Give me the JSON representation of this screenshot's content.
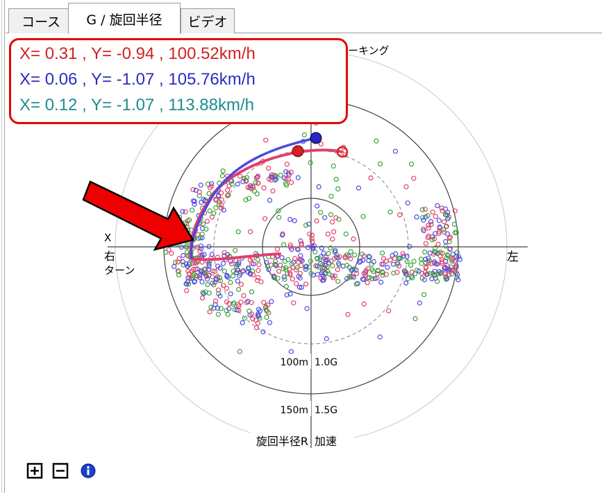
{
  "tabs": [
    {
      "label": "コース",
      "active": false
    },
    {
      "label": "G / 旋回半径",
      "active": true
    },
    {
      "label": "ビデオ",
      "active": false
    }
  ],
  "readouts": [
    {
      "text": "X=  0.31 , Y= -0.94 , 100.52km/h",
      "color": "#d42020"
    },
    {
      "text": "X=  0.06 , Y= -1.07 , 105.76km/h",
      "color": "#2b2bc0"
    },
    {
      "text": "X=  0.12 , Y= -1.07 , 113.88km/h",
      "color": "#1e8c8c"
    }
  ],
  "chart": {
    "top_label": "ブレーキング",
    "left_label_x": "X",
    "left_label_1": "右",
    "left_label_2": "ターン",
    "right_label": "左",
    "ring_100_r": "100m",
    "ring_100_g": "1.0G",
    "ring_150_r": "150m",
    "ring_150_g": "1.5G",
    "bottom_left_label": "旋回半径R",
    "bottom_right_label": "加速"
  },
  "toolbar": {
    "zoom_in": "plus-square-icon",
    "zoom_out": "minus-square-icon",
    "info": "info-icon"
  },
  "colors": {
    "red_series": "#e0406a",
    "blue_series": "#4a4ae0",
    "green_series": "#3aa23a",
    "arrow": "#ee0000",
    "readout_border": "#e60000"
  }
}
